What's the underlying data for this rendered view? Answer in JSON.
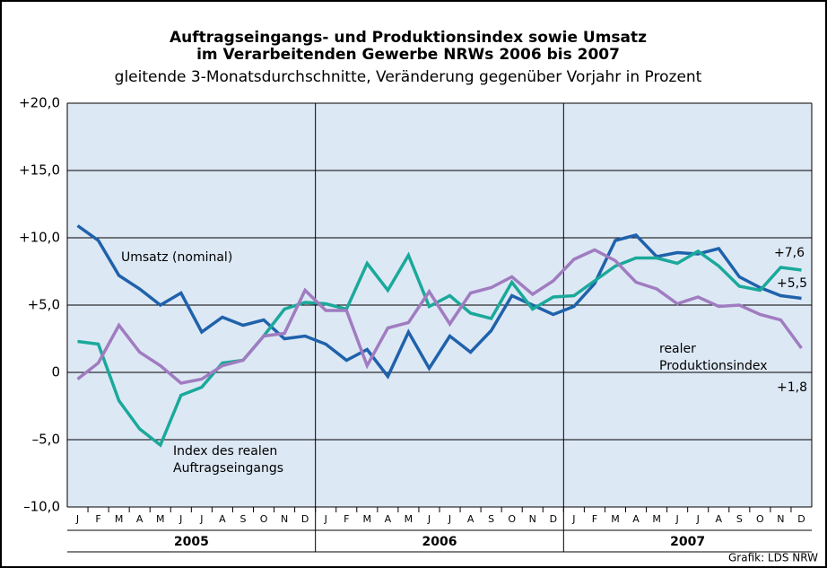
{
  "chart_data": {
    "type": "line",
    "title_lines": [
      "Auftragseingangs- und Produktionsindex sowie Umsatz",
      "im Verarbeitenden Gewerbe NRWs 2006 bis 2007"
    ],
    "subtitle": "gleitende 3-Monatsdurchschnitte, Veränderung gegenüber Vorjahr in Prozent",
    "categories": [
      "J",
      "F",
      "M",
      "A",
      "M",
      "J",
      "J",
      "A",
      "S",
      "O",
      "N",
      "D",
      "J",
      "F",
      "M",
      "A",
      "M",
      "J",
      "J",
      "A",
      "S",
      "O",
      "N",
      "D",
      "J",
      "F",
      "M",
      "A",
      "M",
      "J",
      "J",
      "A",
      "S",
      "O",
      "N",
      "D"
    ],
    "years": [
      "2005",
      "2006",
      "2007"
    ],
    "ylim": [
      -10,
      20
    ],
    "yticks": [
      {
        "value": -10,
        "label": "–10,0"
      },
      {
        "value": -5,
        "label": "–5,0"
      },
      0,
      {
        "value": 5,
        "label": "+5,0"
      },
      {
        "value": 10,
        "label": "+10,0"
      },
      {
        "value": 15,
        "label": "+15,0"
      },
      {
        "value": 20,
        "label": "+20,0"
      }
    ],
    "grid": true,
    "series": [
      {
        "label_lines": [
          "Umsatz (nominal)"
        ],
        "color": "#1f62ab",
        "end_label": "+5,5",
        "values": [
          10.9,
          9.8,
          7.2,
          6.2,
          5.0,
          5.9,
          3.0,
          4.1,
          3.5,
          3.9,
          2.5,
          2.7,
          2.1,
          0.9,
          1.7,
          -0.3,
          3.0,
          0.3,
          2.7,
          1.5,
          3.1,
          5.7,
          5.0,
          4.3,
          4.9,
          6.6,
          9.8,
          10.2,
          8.6,
          8.9,
          8.8,
          9.2,
          7.1,
          6.3,
          5.7,
          5.5
        ]
      },
      {
        "label_lines": [
          "Index des realen",
          "Auftragseingangs"
        ],
        "color": "#1aa99a",
        "end_label": "+7,6",
        "values": [
          2.3,
          2.1,
          -2.1,
          -4.2,
          -5.4,
          -1.7,
          -1.1,
          0.7,
          0.9,
          2.7,
          4.7,
          5.2,
          5.1,
          4.7,
          8.1,
          6.1,
          8.7,
          4.9,
          5.7,
          4.4,
          4.0,
          6.7,
          4.7,
          5.6,
          5.7,
          6.8,
          7.9,
          8.5,
          8.5,
          8.1,
          9.0,
          7.9,
          6.4,
          6.1,
          7.8,
          7.6
        ]
      },
      {
        "label_lines": [
          "realer",
          "Produktionsindex"
        ],
        "color": "#a07cc0",
        "end_label": "+1,8",
        "values": [
          -0.5,
          0.7,
          3.5,
          1.5,
          0.5,
          -0.8,
          -0.5,
          0.5,
          0.9,
          2.7,
          2.9,
          6.1,
          4.6,
          4.6,
          0.5,
          3.3,
          3.7,
          6.0,
          3.6,
          5.9,
          6.3,
          7.1,
          5.8,
          6.8,
          8.4,
          9.1,
          8.3,
          6.7,
          6.2,
          5.1,
          5.6,
          4.9,
          5.0,
          4.3,
          3.9,
          1.8
        ]
      }
    ],
    "credit": "Grafik: LDS NRW"
  }
}
